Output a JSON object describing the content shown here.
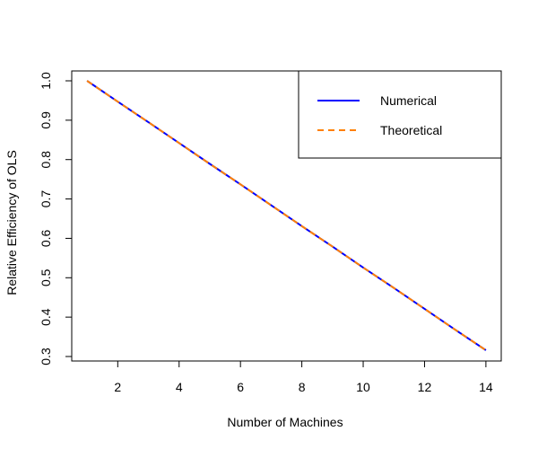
{
  "chart_data": {
    "type": "line",
    "title": "",
    "xlabel": "Number of Machines",
    "ylabel": "Relative Efficiency of OLS",
    "xlim": [
      0.5,
      14.5
    ],
    "ylim": [
      0.3,
      1.0
    ],
    "xticks": [
      2,
      4,
      6,
      8,
      10,
      12,
      14
    ],
    "yticks": [
      0.3,
      0.4,
      0.5,
      0.6,
      0.7,
      0.8,
      0.9,
      1.0
    ],
    "ytick_labels": [
      "0.3",
      "0.4",
      "0.5",
      "0.6",
      "0.7",
      "0.8",
      "0.9",
      "1.0"
    ],
    "grid": false,
    "legend_position": "top-right",
    "x": [
      1,
      2,
      3,
      4,
      5,
      6,
      7,
      8,
      9,
      10,
      11,
      12,
      13,
      14
    ],
    "series": [
      {
        "name": "Numerical",
        "color": "#0000ff",
        "style": "solid",
        "values": [
          1.0,
          0.947,
          0.895,
          0.842,
          0.789,
          0.737,
          0.684,
          0.631,
          0.579,
          0.526,
          0.474,
          0.421,
          0.368,
          0.316
        ]
      },
      {
        "name": "Theoretical",
        "color": "#ff8000",
        "style": "dashed",
        "values": [
          1.0,
          0.947,
          0.895,
          0.842,
          0.789,
          0.737,
          0.684,
          0.631,
          0.579,
          0.526,
          0.474,
          0.421,
          0.368,
          0.316
        ]
      }
    ]
  }
}
